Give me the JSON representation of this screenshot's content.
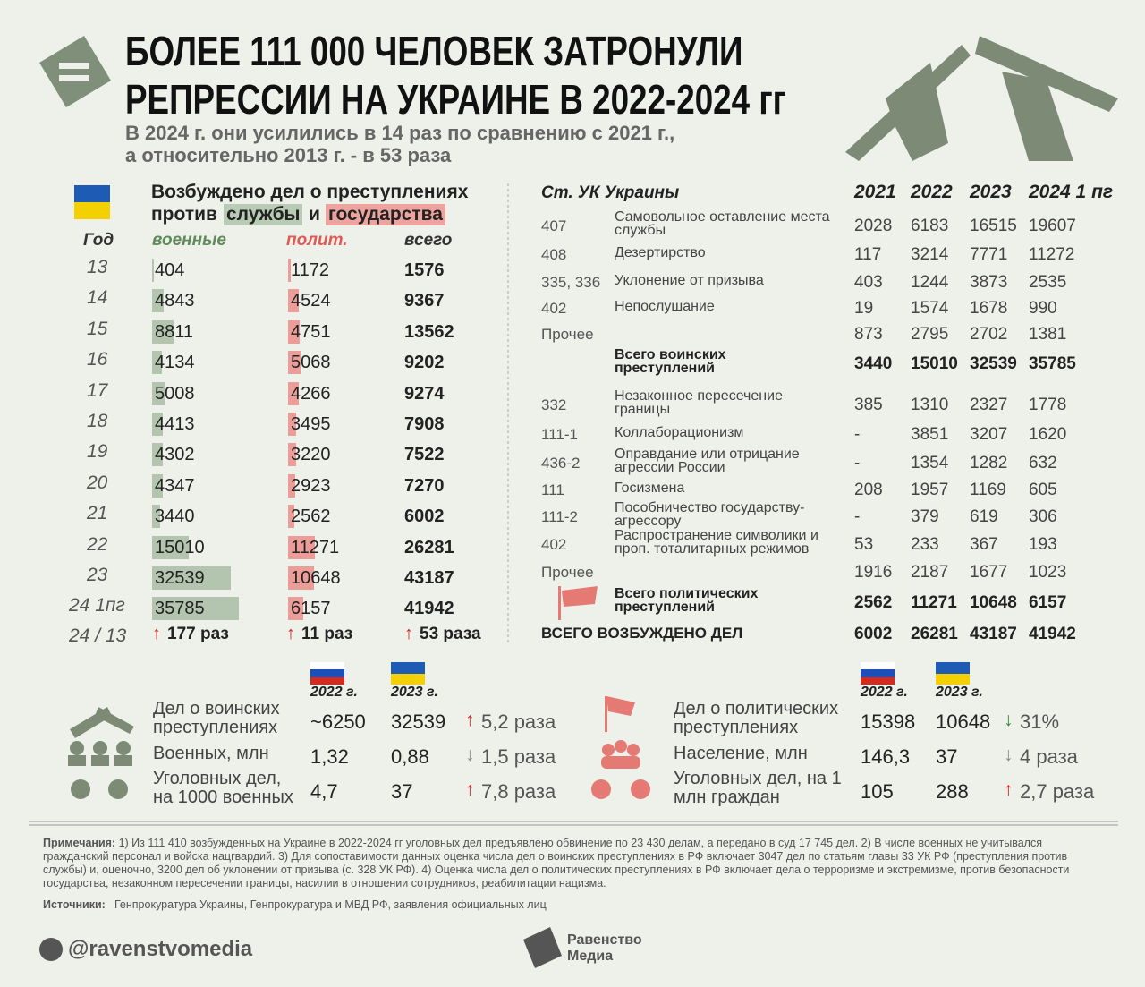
{
  "header": {
    "title_line1": "БОЛЕЕ 111 000 ЧЕЛОВЕК ЗАТРОНУЛИ",
    "title_line2": "РЕПРЕССИИ НА УКРАИНЕ В 2022-2024 гг",
    "subtitle_line1": "В 2024 г. они усилились в 14 раз по сравнению с 2021 г.,",
    "subtitle_line2": "а относительно 2013 г. - в 53 раза"
  },
  "left_table": {
    "title_line1": "Возбуждено дел о преступлениях",
    "title_pre": "против",
    "title_mil": "службы",
    "title_and": "и",
    "title_pol": "государства",
    "columns": [
      "Год",
      "военные",
      "полит.",
      "всего"
    ],
    "rows": [
      {
        "year": "13",
        "military": 404,
        "political": 1172,
        "total": 1576
      },
      {
        "year": "14",
        "military": 4843,
        "political": 4524,
        "total": 9367
      },
      {
        "year": "15",
        "military": 8811,
        "political": 4751,
        "total": 13562
      },
      {
        "year": "16",
        "military": 4134,
        "political": 5068,
        "total": 9202
      },
      {
        "year": "17",
        "military": 5008,
        "political": 4266,
        "total": 9274
      },
      {
        "year": "18",
        "military": 4413,
        "political": 3495,
        "total": 7908
      },
      {
        "year": "19",
        "military": 4302,
        "political": 3220,
        "total": 7522
      },
      {
        "year": "20",
        "military": 4347,
        "political": 2923,
        "total": 7270
      },
      {
        "year": "21",
        "military": 3440,
        "political": 2562,
        "total": 6002
      },
      {
        "year": "22",
        "military": 15010,
        "political": 11271,
        "total": 26281
      },
      {
        "year": "23",
        "military": 32539,
        "political": 10648,
        "total": 43187
      },
      {
        "year": "24 1пг",
        "military": 35785,
        "political": 6157,
        "total": 41942
      }
    ],
    "ratio": {
      "year": "24 / 13",
      "military": "177 раз",
      "political": "11 раз",
      "total": "53 раза"
    }
  },
  "right_table": {
    "columns": [
      "Ст. УК Украины",
      "2021",
      "2022",
      "2023",
      "2024 1 пг"
    ],
    "military_rows": [
      {
        "article": "407",
        "name": "Самовольное оставление места службы",
        "values": [
          2028,
          6183,
          16515,
          19607
        ]
      },
      {
        "article": "408",
        "name": "Дезертирство",
        "values": [
          117,
          3214,
          7771,
          11272
        ]
      },
      {
        "article": "335, 336",
        "name": "Уклонение от призыва",
        "values": [
          403,
          1244,
          3873,
          2535
        ]
      },
      {
        "article": "402",
        "name": "Непослушание",
        "values": [
          19,
          1574,
          1678,
          990
        ]
      },
      {
        "article": "Прочее",
        "values": [
          873,
          2795,
          2702,
          1381
        ]
      }
    ],
    "military_total": {
      "name": "Всего воинских преступлений",
      "values": [
        3440,
        15010,
        32539,
        35785
      ]
    },
    "political_rows": [
      {
        "article": "332",
        "name": "Незаконное пересечение границы",
        "values": [
          385,
          1310,
          2327,
          1778
        ]
      },
      {
        "article": "111-1",
        "name": "Коллаборационизм",
        "values": [
          "-",
          3851,
          3207,
          1620
        ]
      },
      {
        "article": "436-2",
        "name": "Оправдание или отрицание агрессии России",
        "values": [
          "-",
          1354,
          1282,
          632
        ]
      },
      {
        "article": "111",
        "name": "Госизмена",
        "values": [
          208,
          1957,
          1169,
          605
        ]
      },
      {
        "article": "111-2",
        "name": "Пособничество государству-агрессору",
        "values": [
          "-",
          379,
          619,
          306
        ]
      },
      {
        "article": "402",
        "name": "Распространение символики и проп. тоталитарных режимов",
        "values": [
          53,
          233,
          367,
          193
        ]
      },
      {
        "article": "Прочее",
        "values": [
          1916,
          2187,
          1677,
          1023
        ]
      }
    ],
    "political_total": {
      "name": "Всего политических преступлений",
      "values": [
        2562,
        11271,
        10648,
        6157
      ]
    },
    "grand_total": {
      "name": "ВСЕГО ВОЗБУЖДЕНО ДЕЛ",
      "values": [
        6002,
        26281,
        43187,
        41942
      ]
    }
  },
  "comparison": [
    {
      "headers": [
        "2022 г.",
        "2023 г."
      ],
      "rows": [
        {
          "label": "Дел о воинских преступлениях",
          "ru": "~6250",
          "ua": "32539",
          "change": "5,2 раза",
          "arrow": "up",
          "arrow_color": "#e02020"
        },
        {
          "label": "Военных, млн",
          "ru": "1,32",
          "ua": "0,88",
          "change": "1,5 раза",
          "arrow": "down",
          "arrow_color": "#8a8a8a"
        },
        {
          "label": "Уголовных дел, на 1000 военных",
          "ru": "4,7",
          "ua": "37",
          "change": "7,8 раза",
          "arrow": "up",
          "arrow_color": "#e02020"
        }
      ]
    },
    {
      "headers": [
        "2022 г.",
        "2023 г."
      ],
      "rows": [
        {
          "label": "Дел о политических преступлениях",
          "ru": "15398",
          "ua": "10648",
          "change": "31%",
          "arrow": "down",
          "arrow_color": "#2e8b2e"
        },
        {
          "label": "Население, млн",
          "ru": "146,3",
          "ua": "37",
          "change": "4 раза",
          "arrow": "down",
          "arrow_color": "#8a8a8a"
        },
        {
          "label": "Уголовных дел, на 1 млн граждан",
          "ru": "105",
          "ua": "288",
          "change": "2,7 раза",
          "arrow": "up",
          "arrow_color": "#e02020"
        }
      ]
    }
  ],
  "notes": {
    "label": "Примечания:",
    "text": "1) Из 111 410 возбужденных на Украине в 2022-2024 гг уголовных дел предъявлено обвинение по 23 430 делам, а передано в суд 17 745 дел. 2) В числе военных не учитывался гражданский персонал и войска нацгвардий. 3) Для сопоставимости данных оценка числа дел о воинских преступлениях в РФ включает 3047 дел по статьям главы 33 УК РФ (преступления против службы) и, оценочно, 3200 дел об уклонении от призыва (с. 328 УК РФ). 4) Оценка числа дел о политических преступлениях в РФ включает дела о терроризме и экстремизме, против безопасности государства, незаконном пересечении границы, насилии в отношении сотрудников, реабилитации нацизма."
  },
  "sources": {
    "label": "Источники:",
    "text": "Генпрокуратура Украины, Генпрокуратура и МВД РФ, заявления официальных лиц"
  },
  "footer": {
    "handle": "@ravenstvomedia",
    "brand_line1": "Равенство",
    "brand_line2": "Медиа"
  }
}
